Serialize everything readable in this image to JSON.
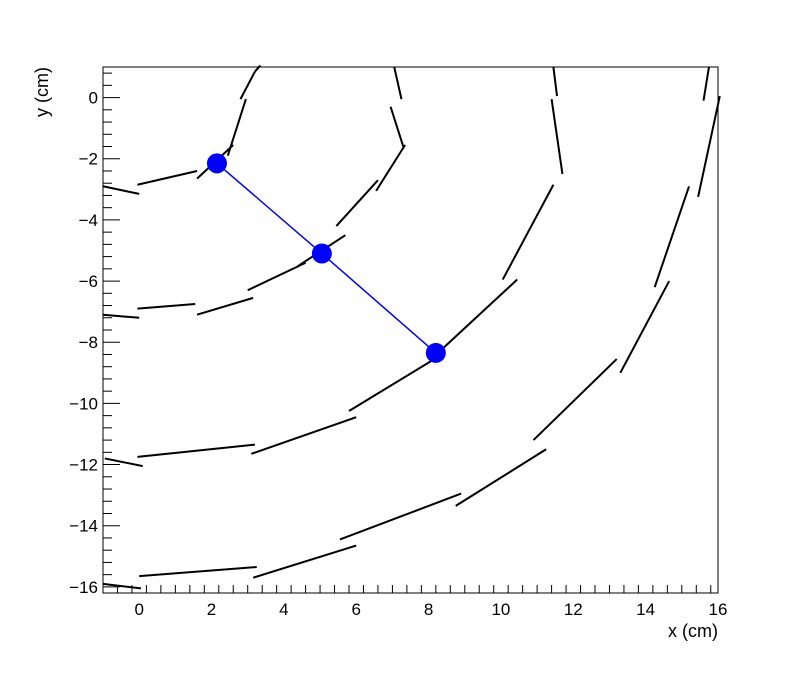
{
  "chart_data": {
    "type": "scatter",
    "title": "",
    "xlabel": "x (cm)",
    "ylabel": "y (cm)",
    "xlim": [
      -1,
      16
    ],
    "ylim": [
      -16.2,
      1.0
    ],
    "xticks": [
      0,
      2,
      4,
      6,
      8,
      10,
      12,
      14,
      16
    ],
    "xtick_labels": [
      "0",
      "2",
      "4",
      "6",
      "8",
      "10",
      "12",
      "14",
      "16"
    ],
    "yticks": [
      0,
      -2,
      -4,
      -6,
      -8,
      -10,
      -12,
      -14,
      -16
    ],
    "ytick_labels": [
      "0",
      "−2",
      "−4",
      "−6",
      "−8",
      "−10",
      "−12",
      "−14",
      "−16"
    ],
    "grid": false,
    "series": [
      {
        "points": [
          [
            2.15,
            -2.15
          ],
          [
            5.05,
            -5.1
          ],
          [
            8.2,
            -8.35
          ]
        ],
        "color": "#0000ff",
        "marker": "circle",
        "line": true
      }
    ],
    "segments": [
      [
        [
          -1.0,
          -2.9
        ],
        [
          0.0,
          -3.15
        ]
      ],
      [
        [
          -0.05,
          -2.85
        ],
        [
          1.6,
          -2.4
        ]
      ],
      [
        [
          1.6,
          -2.65
        ],
        [
          2.6,
          -1.55
        ]
      ],
      [
        [
          2.45,
          -1.9
        ],
        [
          2.95,
          -0.05
        ]
      ],
      [
        [
          2.8,
          -0.05
        ],
        [
          3.2,
          0.85
        ]
      ],
      [
        [
          3.2,
          0.85
        ],
        [
          3.35,
          1.05
        ]
      ],
      [
        [
          -1.0,
          -7.1
        ],
        [
          0.0,
          -7.2
        ]
      ],
      [
        [
          -0.05,
          -6.9
        ],
        [
          1.55,
          -6.75
        ]
      ],
      [
        [
          1.6,
          -7.1
        ],
        [
          3.15,
          -6.55
        ]
      ],
      [
        [
          3.0,
          -6.3
        ],
        [
          4.6,
          -5.4
        ]
      ],
      [
        [
          4.4,
          -5.5
        ],
        [
          5.7,
          -4.5
        ]
      ],
      [
        [
          5.45,
          -4.2
        ],
        [
          6.6,
          -2.7
        ]
      ],
      [
        [
          6.55,
          -3.05
        ],
        [
          7.35,
          -1.55
        ]
      ],
      [
        [
          6.95,
          -0.3
        ],
        [
          7.3,
          -1.6
        ]
      ],
      [
        [
          7.05,
          1.0
        ],
        [
          7.25,
          -0.05
        ]
      ],
      [
        [
          -0.95,
          -11.8
        ],
        [
          0.1,
          -12.05
        ]
      ],
      [
        [
          -0.05,
          -11.75
        ],
        [
          3.2,
          -11.35
        ]
      ],
      [
        [
          3.1,
          -11.65
        ],
        [
          6.0,
          -10.45
        ]
      ],
      [
        [
          5.8,
          -10.25
        ],
        [
          8.3,
          -8.45
        ]
      ],
      [
        [
          8.35,
          -8.25
        ],
        [
          10.45,
          -5.95
        ]
      ],
      [
        [
          10.05,
          -5.95
        ],
        [
          11.45,
          -2.85
        ]
      ],
      [
        [
          11.4,
          -0.05
        ],
        [
          11.7,
          -2.5
        ]
      ],
      [
        [
          11.45,
          1.0
        ],
        [
          11.55,
          0.05
        ]
      ],
      [
        [
          -1.0,
          -15.9
        ],
        [
          0.05,
          -16.05
        ]
      ],
      [
        [
          0.0,
          -15.65
        ],
        [
          3.25,
          -15.35
        ]
      ],
      [
        [
          3.15,
          -15.7
        ],
        [
          6.0,
          -14.65
        ]
      ],
      [
        [
          5.55,
          -14.45
        ],
        [
          8.9,
          -12.95
        ]
      ],
      [
        [
          8.75,
          -13.35
        ],
        [
          11.25,
          -11.5
        ]
      ],
      [
        [
          10.9,
          -11.2
        ],
        [
          13.2,
          -8.55
        ]
      ],
      [
        [
          13.3,
          -9.0
        ],
        [
          14.65,
          -6.0
        ]
      ],
      [
        [
          14.25,
          -6.2
        ],
        [
          15.2,
          -2.9
        ]
      ],
      [
        [
          15.45,
          -3.25
        ],
        [
          16.05,
          0.05
        ]
      ],
      [
        [
          15.6,
          -0.1
        ],
        [
          15.75,
          1.0
        ]
      ]
    ]
  }
}
